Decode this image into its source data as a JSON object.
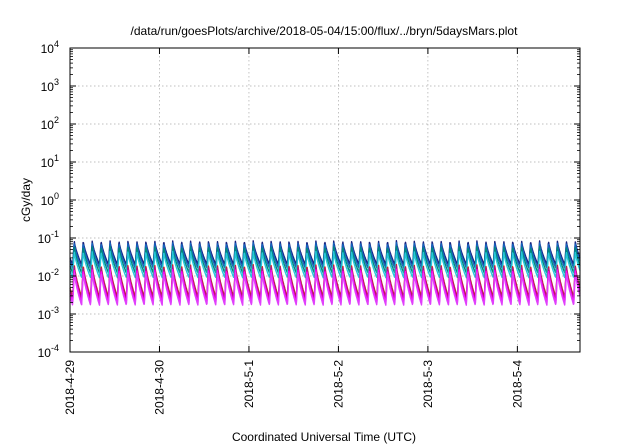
{
  "chart_data": {
    "type": "line",
    "title": "/data/run/goesPlots/archive/2018-05-04/15:00/flux/../bryn/5daysMars.plot",
    "xlabel": "Coordinated Universal Time (UTC)",
    "ylabel": "cGy/day",
    "y_scale": "log",
    "ylim": [
      0.0001,
      10000
    ],
    "y_ticks": [
      {
        "value": 0.0001,
        "base": "10",
        "exp": "-4"
      },
      {
        "value": 0.001,
        "base": "10",
        "exp": "-3"
      },
      {
        "value": 0.01,
        "base": "10",
        "exp": "-2"
      },
      {
        "value": 0.1,
        "base": "10",
        "exp": "-1"
      },
      {
        "value": 1,
        "base": "10",
        "exp": "0"
      },
      {
        "value": 10,
        "base": "10",
        "exp": "1"
      },
      {
        "value": 100,
        "base": "10",
        "exp": "2"
      },
      {
        "value": 1000,
        "base": "10",
        "exp": "3"
      },
      {
        "value": 10000,
        "base": "10",
        "exp": "4"
      }
    ],
    "x_range_days": [
      0,
      5.7
    ],
    "x_ticks": [
      {
        "day": 0,
        "label": "2018-4-29"
      },
      {
        "day": 1,
        "label": "2018-4-30"
      },
      {
        "day": 2,
        "label": "2018-5-1"
      },
      {
        "day": 3,
        "label": "2018-5-2"
      },
      {
        "day": 4,
        "label": "2018-5-3"
      },
      {
        "day": 5,
        "label": "2018-5-4"
      }
    ],
    "grid": true,
    "oscillation_period_days": 0.1,
    "series": [
      {
        "color": "#1a237e",
        "peak": 0.085,
        "trough": 0.02
      },
      {
        "color": "#1565c0",
        "peak": 0.075,
        "trough": 0.016
      },
      {
        "color": "#00897b",
        "peak": 0.06,
        "trough": 0.012
      },
      {
        "color": "#26c6da",
        "peak": 0.045,
        "trough": 0.009
      },
      {
        "color": "#c62828",
        "peak": 0.02,
        "trough": 0.0028
      },
      {
        "color": "#b0128a",
        "peak": 0.018,
        "trough": 0.0024
      },
      {
        "color": "#ff00ff",
        "peak": 0.015,
        "trough": 0.002
      },
      {
        "color": "#e040fb",
        "peak": 0.013,
        "trough": 0.0017
      }
    ]
  }
}
